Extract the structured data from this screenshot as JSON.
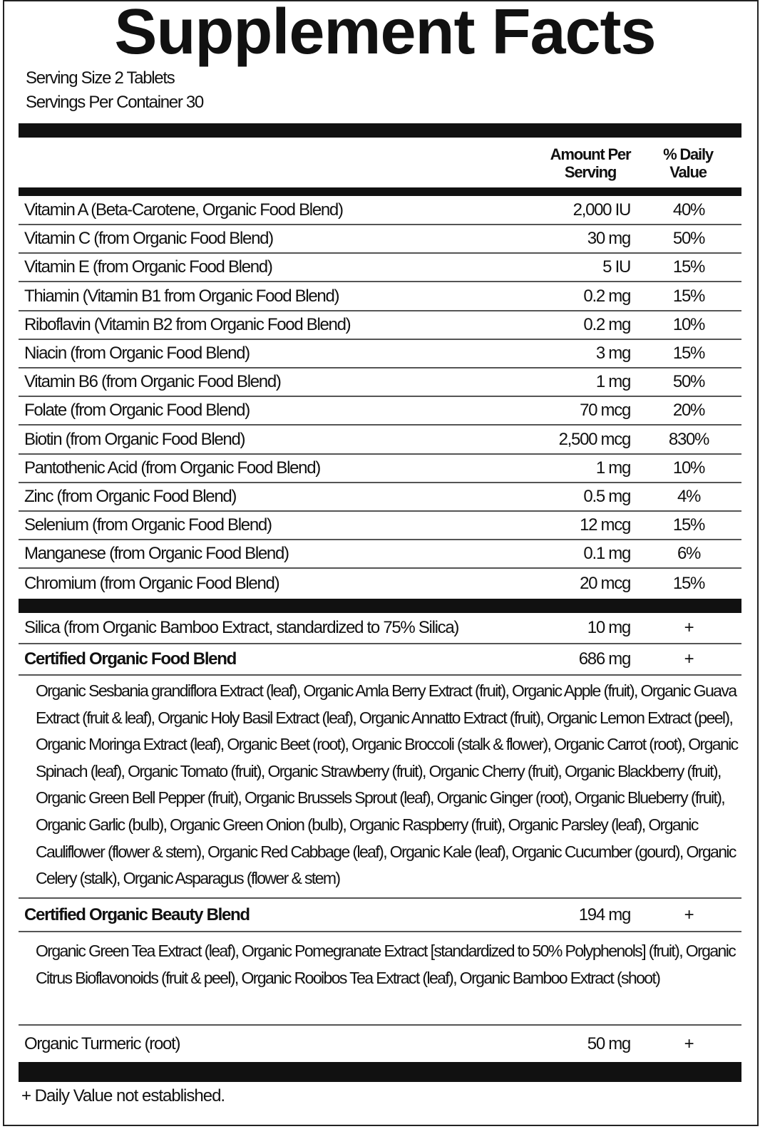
{
  "title": "Supplement Facts",
  "serving_size": "Serving Size 2 Tablets",
  "servings_per_container": "Servings Per Container 30",
  "headers": {
    "amount": "Amount Per Serving",
    "dv": "% Daily Value"
  },
  "nutrients": [
    {
      "name": "Vitamin A (Beta-Carotene, Organic Food Blend)",
      "amount": "2,000 IU",
      "dv": "40%"
    },
    {
      "name": "Vitamin C (from Organic Food Blend)",
      "amount": "30 mg",
      "dv": "50%"
    },
    {
      "name": "Vitamin E (from Organic Food Blend)",
      "amount": "5 IU",
      "dv": "15%"
    },
    {
      "name": "Thiamin (Vitamin B1 from Organic Food Blend)",
      "amount": "0.2 mg",
      "dv": "15%"
    },
    {
      "name": "Riboflavin (Vitamin B2 from Organic Food Blend)",
      "amount": "0.2 mg",
      "dv": "10%"
    },
    {
      "name": "Niacin (from Organic Food Blend)",
      "amount": "3 mg",
      "dv": "15%"
    },
    {
      "name": "Vitamin B6 (from Organic Food Blend)",
      "amount": "1 mg",
      "dv": "50%"
    },
    {
      "name": "Folate (from Organic Food Blend)",
      "amount": "70 mcg",
      "dv": "20%"
    },
    {
      "name": "Biotin (from Organic Food Blend)",
      "amount": "2,500 mcg",
      "dv": "830%"
    },
    {
      "name": "Pantothenic Acid (from Organic Food Blend)",
      "amount": "1 mg",
      "dv": "10%"
    },
    {
      "name": "Zinc (from Organic Food Blend)",
      "amount": "0.5 mg",
      "dv": "4%"
    },
    {
      "name": "Selenium (from Organic Food Blend)",
      "amount": "12 mcg",
      "dv": "15%"
    },
    {
      "name": "Manganese (from Organic Food Blend)",
      "amount": "0.1 mg",
      "dv": "6%"
    },
    {
      "name": "Chromium (from Organic Food Blend)",
      "amount": "20 mcg",
      "dv": "15%"
    }
  ],
  "silica": {
    "name": "Silica (from Organic Bamboo Extract, standardized to 75% Silica)",
    "amount": "10 mg",
    "dv": "+"
  },
  "food_blend": {
    "name": "Certified Organic Food Blend",
    "amount": "686 mg",
    "dv": "+",
    "ingredients": "Organic Sesbania grandiflora Extract (leaf), Organic Amla Berry Extract (fruit), Organic Apple (fruit), Organic Guava Extract (fruit & leaf), Organic Holy Basil Extract (leaf), Organic Annatto Extract (fruit), Organic Lemon Extract (peel), Organic Moringa Extract (leaf), Organic Beet (root), Organic Broccoli (stalk & flower), Organic Carrot (root), Organic Spinach (leaf), Organic Tomato (fruit), Organic Strawberry (fruit), Organic Cherry (fruit), Organic Blackberry (fruit), Organic Green Bell Pepper (fruit), Organic Brussels Sprout (leaf), Organic Ginger (root), Organic Blueberry (fruit), Organic Garlic (bulb), Organic Green Onion (bulb), Organic Raspberry (fruit), Organic Parsley (leaf), Organic Cauliflower (flower & stem), Organic Red Cabbage (leaf), Organic Kale (leaf), Organic Cucumber (gourd), Organic Celery (stalk), Organic Asparagus (flower & stem)"
  },
  "beauty_blend": {
    "name": "Certified Organic Beauty Blend",
    "amount": "194 mg",
    "dv": "+",
    "ingredients": "Organic Green Tea Extract (leaf), Organic Pomegranate Extract [standardized to 50% Polyphenols] (fruit), Organic Citrus Bioflavonoids (fruit & peel), Organic Rooibos Tea Extract (leaf), Organic Bamboo Extract (shoot)"
  },
  "turmeric": {
    "name": "Organic Turmeric (root)",
    "amount": "50 mg",
    "dv": "+"
  },
  "footnote": "+ Daily Value not established."
}
